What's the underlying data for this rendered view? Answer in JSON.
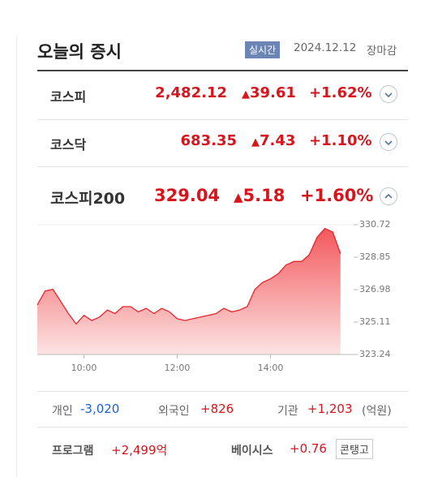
{
  "header": {
    "title": "오늘의 증시",
    "badge": "실시간",
    "date": "2024.12.12",
    "status": "장마감"
  },
  "indices": [
    {
      "name": "코스피",
      "value": "2,482.12",
      "change": "39.61",
      "rate": "+1.62%"
    },
    {
      "name": "코스닥",
      "value": "683.35",
      "change": "7.43",
      "rate": "+1.10%"
    },
    {
      "name": "코스피200",
      "value": "329.04",
      "change": "5.18",
      "rate": "+1.60%"
    }
  ],
  "chart_data": {
    "type": "area",
    "color": "#e8262b",
    "x": [
      "09:00",
      "09:10",
      "09:20",
      "09:30",
      "09:40",
      "09:50",
      "10:00",
      "10:10",
      "10:20",
      "10:30",
      "10:40",
      "10:50",
      "11:00",
      "11:10",
      "11:20",
      "11:30",
      "11:40",
      "11:50",
      "12:00",
      "12:10",
      "12:20",
      "12:30",
      "12:40",
      "12:50",
      "13:00",
      "13:10",
      "13:20",
      "13:30",
      "13:40",
      "13:50",
      "14:00",
      "14:10",
      "14:20",
      "14:30",
      "14:40",
      "14:50",
      "15:00",
      "15:10",
      "15:20",
      "15:30"
    ],
    "values": [
      326.1,
      326.9,
      327.0,
      326.3,
      325.6,
      325.0,
      325.5,
      325.2,
      325.4,
      325.8,
      325.6,
      326.0,
      326.0,
      325.7,
      325.9,
      325.6,
      325.9,
      325.7,
      325.3,
      325.2,
      325.3,
      325.4,
      325.5,
      325.6,
      325.9,
      325.7,
      325.8,
      326.0,
      327.0,
      327.4,
      327.6,
      327.9,
      328.4,
      328.6,
      328.6,
      329.0,
      330.0,
      330.5,
      330.3,
      329.04
    ],
    "xticks": [
      "10:00",
      "12:00",
      "14:00"
    ],
    "ylim": [
      323.24,
      330.72
    ],
    "yticks": [
      323.24,
      325.11,
      326.98,
      328.85,
      330.72
    ]
  },
  "investors": {
    "items": [
      {
        "label": "개인",
        "value": "-3,020"
      },
      {
        "label": "외국인",
        "value": "+826"
      },
      {
        "label": "기관",
        "value": "+1,203"
      }
    ],
    "unit": "(억원)"
  },
  "program": {
    "label": "프로그램",
    "value": "+2,499억",
    "basis_label": "베이시스",
    "basis_value": "+0.76",
    "basis_state": "콘탱고"
  }
}
